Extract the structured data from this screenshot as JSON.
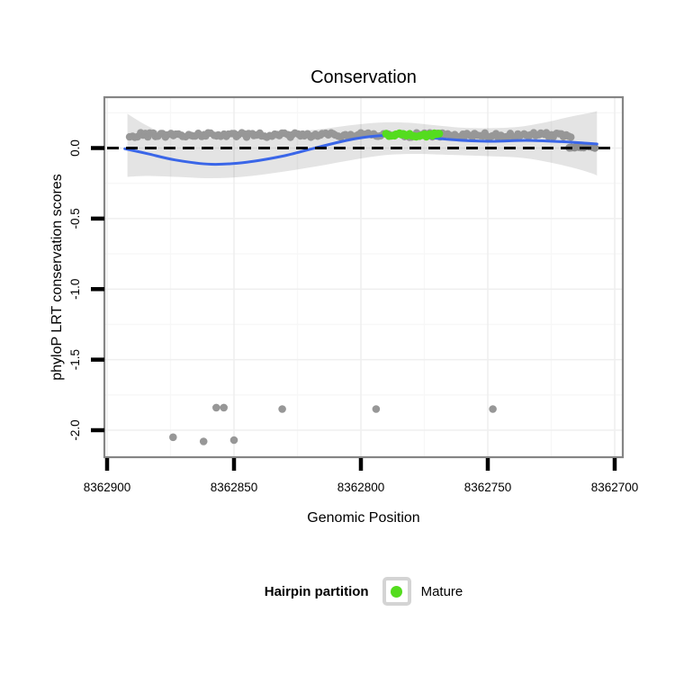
{
  "title": "Conservation",
  "axes": {
    "x": {
      "title": "Genomic Position",
      "tick_labels": [
        "8362900",
        "8362850",
        "8362800",
        "8362750",
        "8362700"
      ],
      "tick_values": [
        8362900,
        8362850,
        8362800,
        8362750,
        8362700
      ],
      "minor_tick_values": [
        8362875,
        8362825,
        8362775,
        8362725
      ],
      "reversed": true,
      "range": [
        8362901,
        8362697
      ]
    },
    "y": {
      "title": "phyloP LRT conservation scores",
      "tick_labels": [
        "0.0",
        "-0.5",
        "-1.0",
        "-1.5",
        "-2.0"
      ],
      "tick_values": [
        0.0,
        -0.5,
        -1.0,
        -1.5,
        -2.0
      ],
      "minor_tick_values": [
        0.25,
        -0.25,
        -0.75,
        -1.25,
        -1.75
      ],
      "range": [
        0.36,
        -2.19
      ]
    }
  },
  "legend": {
    "title": "Hairpin partition",
    "items": [
      {
        "label": "Mature",
        "color": "#54DC1E",
        "marker": "circle"
      }
    ]
  },
  "colors": {
    "point_gray": "#979797",
    "point_end_gray": "#8E8E8E",
    "mature_green": "#54DC1E",
    "smooth_blue": "#3A66E8",
    "ribbon": "rgba(85,85,85,0.16)",
    "panel_border": "#858585",
    "grid_major": "#EFEFEF",
    "grid_minor": "#F7F7F7",
    "reference_black": "#000000"
  },
  "chart_data": {
    "type": "scatter",
    "title": "Conservation",
    "xlabel": "Genomic Position",
    "ylabel": "phyloP LRT conservation scores",
    "x_axis": {
      "ticks": [
        8362900,
        8362850,
        8362800,
        8362750,
        8362700
      ],
      "reversed": true,
      "range": [
        8362901,
        8362697
      ]
    },
    "y_axis": {
      "ticks": [
        0.0,
        -0.5,
        -1.0,
        -1.5,
        -2.0
      ],
      "range": [
        0.36,
        -2.19
      ]
    },
    "grid": "faint major and minor gridlines",
    "legend_position": "bottom",
    "point_bands": [
      {
        "name": "hairpin-conserved-band",
        "color": "#979797",
        "from": 8362891,
        "to": 8362717,
        "value": 0.092,
        "jitter": 0.016,
        "radius": 4.2
      },
      {
        "name": "end-cluster-near-zero",
        "color": "#8E8E8E",
        "from": 8362718,
        "to": 8362708,
        "value": 0.005,
        "jitter": 0.009,
        "radius": 4.4
      }
    ],
    "mature_band": {
      "name": "mature",
      "color": "#54DC1E",
      "from": 8362790,
      "to": 8362769,
      "value": 0.092,
      "jitter": 0.012,
      "radius": 4.4
    },
    "outliers": {
      "color": "#979797",
      "radius": 4.3,
      "points": [
        [
          8362857,
          -1.84
        ],
        [
          8362854,
          -1.84
        ],
        [
          8362831,
          -1.85
        ],
        [
          8362794,
          -1.85
        ],
        [
          8362748,
          -1.85
        ],
        [
          8362874,
          -2.05
        ],
        [
          8362862,
          -2.08
        ],
        [
          8362850,
          -2.07
        ]
      ]
    },
    "smooth": {
      "color": "#3A66E8",
      "width": 3,
      "line": [
        [
          8362893,
          -0.005
        ],
        [
          8362884,
          -0.04
        ],
        [
          8362873,
          -0.085
        ],
        [
          8362859,
          -0.115
        ],
        [
          8362845,
          -0.1
        ],
        [
          8362830,
          -0.054
        ],
        [
          8362816,
          0.01
        ],
        [
          8362802,
          0.067
        ],
        [
          8362790,
          0.089
        ],
        [
          8362777,
          0.08
        ],
        [
          8362763,
          0.058
        ],
        [
          8362749,
          0.048
        ],
        [
          8362735,
          0.054
        ],
        [
          8362721,
          0.045
        ],
        [
          8362712,
          0.035
        ],
        [
          8362707,
          0.029
        ]
      ],
      "ribbon_upper": [
        [
          8362892,
          0.243
        ],
        [
          8362885,
          0.166
        ],
        [
          8362877,
          0.102
        ],
        [
          8362866,
          0.077
        ],
        [
          8362854,
          0.07
        ],
        [
          8362841,
          0.083
        ],
        [
          8362829,
          0.109
        ],
        [
          8362816,
          0.134
        ],
        [
          8362802,
          0.166
        ],
        [
          8362791,
          0.182
        ],
        [
          8362781,
          0.179
        ],
        [
          8362770,
          0.16
        ],
        [
          8362760,
          0.144
        ],
        [
          8362749,
          0.141
        ],
        [
          8362738,
          0.15
        ],
        [
          8362728,
          0.179
        ],
        [
          8362717,
          0.224
        ],
        [
          8362709,
          0.252
        ],
        [
          8362707,
          0.262
        ]
      ],
      "ribbon_lower": [
        [
          8362892,
          -0.204
        ],
        [
          8362884,
          -0.198
        ],
        [
          8362873,
          -0.204
        ],
        [
          8362859,
          -0.214
        ],
        [
          8362845,
          -0.201
        ],
        [
          8362830,
          -0.166
        ],
        [
          8362816,
          -0.125
        ],
        [
          8362802,
          -0.08
        ],
        [
          8362791,
          -0.051
        ],
        [
          8362781,
          -0.042
        ],
        [
          8362770,
          -0.045
        ],
        [
          8362760,
          -0.051
        ],
        [
          8362749,
          -0.058
        ],
        [
          8362738,
          -0.067
        ],
        [
          8362728,
          -0.093
        ],
        [
          8362717,
          -0.137
        ],
        [
          8362709,
          -0.179
        ],
        [
          8362707,
          -0.195
        ]
      ]
    },
    "reference_line": {
      "value": 0,
      "style": "dashed",
      "color": "#000000",
      "width": 3
    }
  }
}
